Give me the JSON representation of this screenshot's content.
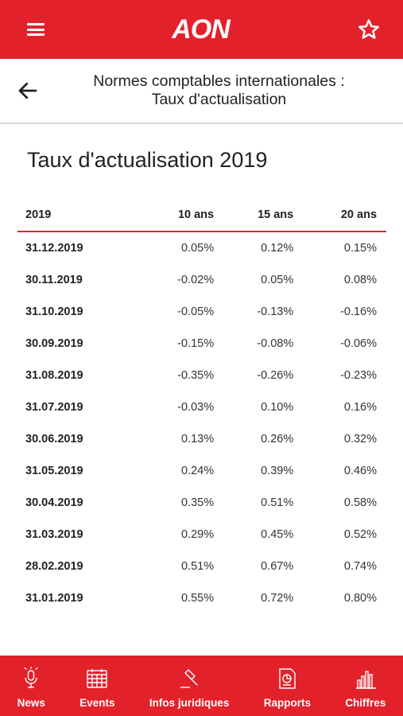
{
  "header": {
    "logo": "AON"
  },
  "subheader": {
    "title_line1": "Normes comptables internationales :",
    "title_line2": "Taux d'actualisation"
  },
  "page_title": "Taux d'actualisation 2019",
  "table": {
    "columns": [
      "2019",
      "10 ans",
      "15 ans",
      "20 ans"
    ],
    "rows": [
      [
        "31.12.2019",
        "0.05%",
        "0.12%",
        "0.15%"
      ],
      [
        "30.11.2019",
        "-0.02%",
        "0.05%",
        "0.08%"
      ],
      [
        "31.10.2019",
        "-0.05%",
        "-0.13%",
        "-0.16%"
      ],
      [
        "30.09.2019",
        "-0.15%",
        "-0.08%",
        "-0.06%"
      ],
      [
        "31.08.2019",
        "-0.35%",
        "-0.26%",
        "-0.23%"
      ],
      [
        "31.07.2019",
        "-0.03%",
        "0.10%",
        "0.16%"
      ],
      [
        "30.06.2019",
        "0.13%",
        "0.26%",
        "0.32%"
      ],
      [
        "31.05.2019",
        "0.24%",
        "0.39%",
        "0.46%"
      ],
      [
        "30.04.2019",
        "0.35%",
        "0.51%",
        "0.58%"
      ],
      [
        "31.03.2019",
        "0.29%",
        "0.45%",
        "0.52%"
      ],
      [
        "28.02.2019",
        "0.51%",
        "0.67%",
        "0.74%"
      ],
      [
        "31.01.2019",
        "0.55%",
        "0.72%",
        "0.80%"
      ]
    ]
  },
  "nav": {
    "items": [
      {
        "label": "News",
        "icon": "microphone-icon"
      },
      {
        "label": "Events",
        "icon": "calendar-icon"
      },
      {
        "label": "Infos juridiques",
        "icon": "gavel-icon"
      },
      {
        "label": "Rapports",
        "icon": "report-icon"
      },
      {
        "label": "Chiffres",
        "icon": "bar-chart-icon"
      }
    ]
  },
  "colors": {
    "brand": "#e3212b",
    "text": "#222222",
    "divider": "#d9d9d9"
  }
}
